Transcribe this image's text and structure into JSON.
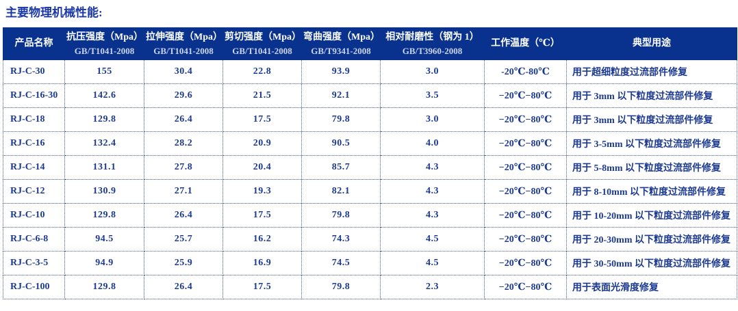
{
  "page_title": "主要物理机械性能:",
  "table": {
    "columns": [
      {
        "key": "name",
        "label": "产品名称",
        "sub": ""
      },
      {
        "key": "compressive",
        "label": "抗压强度（Mpa）",
        "sub": "GB/T1041-2008"
      },
      {
        "key": "tensile",
        "label": "拉伸强度（Mpa）",
        "sub": "GB/T1041-2008"
      },
      {
        "key": "shear",
        "label": "剪切强度（Mpa）",
        "sub": "GB/T1041-2008"
      },
      {
        "key": "bending",
        "label": "弯曲强度（Mpa）",
        "sub": "GB/T9341-2008"
      },
      {
        "key": "wear",
        "label": "相对耐磨性（钢为 1）",
        "sub": "GB/T3960-2008"
      },
      {
        "key": "temp",
        "label": "工作温度（℃）",
        "sub": ""
      },
      {
        "key": "use",
        "label": "典型用途",
        "sub": ""
      }
    ],
    "rows": [
      {
        "name": "RJ-C-30",
        "compressive": "155",
        "tensile": "30.4",
        "shear": "22.8",
        "bending": "93.9",
        "wear": "3.0",
        "temp": "-20℃-80℃",
        "use": "用于超细粒度过流部件修复"
      },
      {
        "name": "RJ-C-16-30",
        "compressive": "142.6",
        "tensile": "29.6",
        "shear": "21.5",
        "bending": "92.1",
        "wear": "3.5",
        "temp": "−20℃−80℃",
        "use": "用于 3mm 以下粒度过流部件修复"
      },
      {
        "name": "RJ-C-18",
        "compressive": "129.8",
        "tensile": "26.4",
        "shear": "17.5",
        "bending": "79.8",
        "wear": "3.0",
        "temp": "−20℃−80℃",
        "use": "用于 3mm 以下粒度过流部件修复"
      },
      {
        "name": "RJ-C-16",
        "compressive": "132.4",
        "tensile": "28.2",
        "shear": "20.9",
        "bending": "90.5",
        "wear": "4.0",
        "temp": "−20℃−80℃",
        "use": "用于 3-5mm 以下粒度过流部件修复"
      },
      {
        "name": "RJ-C-14",
        "compressive": "131.1",
        "tensile": "27.8",
        "shear": "20.4",
        "bending": "85.7",
        "wear": "4.3",
        "temp": "−20℃−80℃",
        "use": "用于 5-8mm 以下粒度过流部件修复"
      },
      {
        "name": "RJ-C-12",
        "compressive": "130.9",
        "tensile": "27.1",
        "shear": "19.3",
        "bending": "82.1",
        "wear": "4.3",
        "temp": "−20℃−80℃",
        "use": "用于 8-10mm 以下粒度过流部件修复"
      },
      {
        "name": "RJ-C-10",
        "compressive": "129.8",
        "tensile": "26.4",
        "shear": "17.5",
        "bending": "79.8",
        "wear": "4.3",
        "temp": "−20℃−80℃",
        "use": "用于 10-20mm 以下粒度过流部件修复"
      },
      {
        "name": "RJ-C-6-8",
        "compressive": "94.5",
        "tensile": "25.7",
        "shear": "16.2",
        "bending": "74.3",
        "wear": "4.5",
        "temp": "−20℃−80℃",
        "use": "用于 20-30mm 以下粒度过流部件修复"
      },
      {
        "name": "RJ-C-3-5",
        "compressive": "94.9",
        "tensile": "25.9",
        "shear": "16.9",
        "bending": "74.5",
        "wear": "4.5",
        "temp": "−20℃−80℃",
        "use": "用于 30-50mm 以下粒度过流部件修复"
      },
      {
        "name": "RJ-C-100",
        "compressive": "129.8",
        "tensile": "26.4",
        "shear": "17.5",
        "bending": "79.8",
        "wear": "2.3",
        "temp": "−20℃−80℃",
        "use": "用于表面光滑度修复"
      }
    ]
  },
  "colors": {
    "header_bg": "#08328e",
    "header_text": "#ffffff",
    "header_sub_text": "#ccd4ec",
    "body_text": "#1c3a90",
    "border_dotted": "#41549f",
    "title_text": "#1a38a8",
    "background": "#ffffff"
  }
}
